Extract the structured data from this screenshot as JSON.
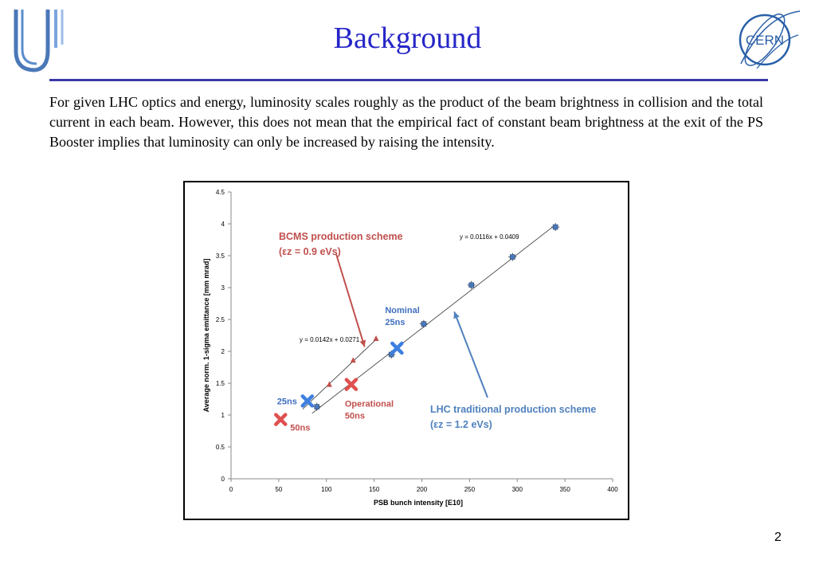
{
  "slide": {
    "title": "Background",
    "paragraph": "For given LHC optics and energy, luminosity scales roughly as the product of the beam brightness in collision and the total current in each beam.  However, this does not mean that the empirical fact of constant beam brightness at the exit of the PS Booster implies that luminosity can only be increased by raising the intensity.",
    "page_number": "2",
    "cern_logo_text": "CERN",
    "accent_color": "#2626c8"
  },
  "chart_data": {
    "type": "scatter",
    "xlabel": "PSB bunch intensity [E10]",
    "ylabel": "Average norm. 1-sigma emittance [mm mrad]",
    "xlim": [
      0,
      400
    ],
    "ylim": [
      0,
      4.5
    ],
    "x_ticks": [
      "0",
      "50",
      "100",
      "150",
      "200",
      "250",
      "300",
      "350",
      "400"
    ],
    "y_ticks": [
      "0",
      "0.5",
      "1",
      "1.5",
      "2",
      "2.5",
      "3",
      "3.5",
      "4",
      "4.5"
    ],
    "grid": false,
    "series": [
      {
        "marker": "square",
        "color": "#4a78b8",
        "points": [
          [
            90,
            1.13
          ],
          [
            168,
            1.95
          ],
          [
            202,
            2.43
          ],
          [
            252,
            3.04
          ],
          [
            295,
            3.48
          ],
          [
            340,
            3.95
          ]
        ],
        "fit_equation": "y = 0.0116x + 0.0409",
        "fit_slope": 0.0116,
        "fit_intercept": 0.0409,
        "fit_range": [
          85,
          340
        ]
      },
      {
        "marker": "triangle",
        "color": "#c0504d",
        "points": [
          [
            103,
            1.48
          ],
          [
            128,
            1.86
          ],
          [
            152,
            2.2
          ]
        ],
        "fit_equation": "y = 0.0142x + 0.0271",
        "fit_slope": 0.0142,
        "fit_intercept": 0.0271,
        "fit_range": [
          75,
          152
        ]
      }
    ],
    "highlights": [
      {
        "label": "25ns",
        "x": 80,
        "y": 1.22,
        "color": "#3f7fe0",
        "label_color": "#3f6fbf"
      },
      {
        "label": "50ns",
        "x": 52,
        "y": 0.93,
        "color": "#e05050",
        "label_color": "#c0504d"
      },
      {
        "label": "Operational 50ns",
        "label_lines": [
          "Operational",
          "50ns"
        ],
        "x": 126,
        "y": 1.48,
        "color": "#e05050",
        "label_color": "#c0504d"
      },
      {
        "label": "Nominal 25ns",
        "label_lines": [
          "Nominal",
          "25ns"
        ],
        "x": 174,
        "y": 2.05,
        "color": "#3f7fe0",
        "label_color": "#3f6fbf"
      }
    ],
    "annotations": [
      {
        "lines": [
          "BCMS production scheme",
          "(εz = 0.9 eVs)"
        ],
        "color": "#c0504d",
        "arrow_to": [
          140,
          2.07
        ]
      },
      {
        "lines": [
          "LHC traditional production scheme",
          "(εz = 1.2 eVs)"
        ],
        "color": "#4f81bd",
        "arrow_to": [
          234,
          2.62
        ]
      }
    ]
  }
}
